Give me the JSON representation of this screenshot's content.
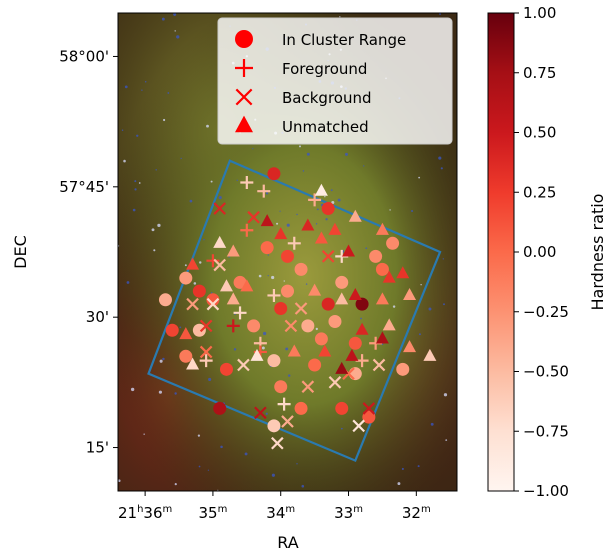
{
  "chart_data": {
    "type": "scatter",
    "xlabel": "RA",
    "ylabel": "DEC",
    "x_ticks": [
      {
        "value": 36,
        "label": "21h36m",
        "main": "21",
        "sup1": "h",
        "mid": "36",
        "sup2": "m"
      },
      {
        "value": 35,
        "label": "35m",
        "main": "35",
        "sup2": "m"
      },
      {
        "value": 34,
        "label": "34m",
        "main": "34",
        "sup2": "m"
      },
      {
        "value": 33,
        "label": "33m",
        "main": "33",
        "sup2": "m"
      },
      {
        "value": 32,
        "label": "32m",
        "main": "32",
        "sup2": "m"
      }
    ],
    "y_ticks": [
      {
        "value": 60,
        "label": "58°00'"
      },
      {
        "value": 45,
        "label": "57°45'"
      },
      {
        "value": 30,
        "label": "30'"
      },
      {
        "value": 15,
        "label": "15'"
      }
    ],
    "xlim": [
      36.4,
      31.4
    ],
    "ylim": [
      10.0,
      65.0
    ],
    "legend": {
      "placement": "top-right",
      "entries": [
        {
          "name": "In Cluster Range",
          "marker": "circle"
        },
        {
          "name": "Foreground",
          "marker": "plus"
        },
        {
          "name": "Background",
          "marker": "x"
        },
        {
          "name": "Unmatched",
          "marker": "triangle"
        }
      ]
    },
    "colorbar": {
      "label": "Hardness ratio",
      "range": [
        -1.0,
        1.0
      ],
      "ticks": [
        "1.00",
        "0.75",
        "0.50",
        "0.25",
        "0.00",
        "−0.25",
        "−0.50",
        "−0.75",
        "−1.00"
      ],
      "tick_values": [
        1.0,
        0.75,
        0.5,
        0.25,
        0.0,
        -0.25,
        -0.5,
        -0.75,
        -1.0
      ],
      "colormap": "Reds"
    },
    "region": [
      [
        35.95,
        23.5
      ],
      [
        34.75,
        48.0
      ],
      [
        31.65,
        37.5
      ],
      [
        32.9,
        13.5
      ]
    ],
    "series": [
      {
        "name": "In Cluster Range",
        "marker": "circle",
        "points": [
          [
            34.1,
            46.5,
            0.4
          ],
          [
            33.3,
            42.5,
            0.3
          ],
          [
            32.6,
            37.0,
            -0.2
          ],
          [
            35.4,
            34.5,
            -0.3
          ],
          [
            35.0,
            32.0,
            0.1
          ],
          [
            34.6,
            34.0,
            -0.1
          ],
          [
            34.2,
            38.0,
            0.0
          ],
          [
            33.7,
            35.5,
            -0.2
          ],
          [
            33.1,
            34.0,
            -0.3
          ],
          [
            32.8,
            31.5,
            0.9
          ],
          [
            35.6,
            28.5,
            0.2
          ],
          [
            35.2,
            28.5,
            -0.5
          ],
          [
            34.4,
            29.0,
            -0.2
          ],
          [
            34.0,
            31.0,
            0.3
          ],
          [
            33.6,
            29.0,
            -0.4
          ],
          [
            33.2,
            29.5,
            -0.3
          ],
          [
            32.9,
            27.0,
            0.1
          ],
          [
            35.4,
            25.5,
            -0.1
          ],
          [
            34.8,
            24.0,
            0.2
          ],
          [
            34.1,
            25.0,
            -0.5
          ],
          [
            33.5,
            24.5,
            0.0
          ],
          [
            32.9,
            23.5,
            -0.4
          ],
          [
            32.2,
            24.0,
            -0.3
          ],
          [
            34.1,
            17.5,
            -0.6
          ],
          [
            33.7,
            19.5,
            0.0
          ],
          [
            33.1,
            19.5,
            0.2
          ],
          [
            32.7,
            18.5,
            0.1
          ],
          [
            34.9,
            19.5,
            0.7
          ],
          [
            34.0,
            22.0,
            -0.1
          ],
          [
            35.2,
            33.0,
            0.3
          ],
          [
            33.9,
            33.0,
            -0.2
          ],
          [
            33.4,
            27.5,
            -0.1
          ],
          [
            32.5,
            35.5,
            0.0
          ],
          [
            35.7,
            32.0,
            -0.4
          ],
          [
            32.35,
            38.5,
            -0.2
          ],
          [
            33.9,
            37.0,
            0.2
          ],
          [
            33.3,
            31.5,
            0.4
          ]
        ]
      },
      {
        "name": "Foreground",
        "marker": "plus",
        "points": [
          [
            34.5,
            45.5,
            -0.6
          ],
          [
            34.25,
            44.5,
            -0.5
          ],
          [
            33.5,
            43.5,
            -0.4
          ],
          [
            33.1,
            37.0,
            -0.7
          ],
          [
            33.8,
            38.5,
            -0.6
          ],
          [
            34.7,
            29.0,
            0.5
          ],
          [
            34.1,
            32.5,
            -0.6
          ],
          [
            34.6,
            30.5,
            -0.7
          ],
          [
            34.3,
            27.0,
            -0.5
          ],
          [
            35.1,
            25.0,
            -0.6
          ],
          [
            34.3,
            26.0,
            0.1
          ],
          [
            32.8,
            25.0,
            -0.4
          ],
          [
            32.6,
            27.0,
            -0.3
          ],
          [
            33.95,
            20.0,
            -0.7
          ],
          [
            35.0,
            36.5,
            0.2
          ],
          [
            34.5,
            40.0,
            0.0
          ]
        ]
      },
      {
        "name": "Background",
        "marker": "x",
        "points": [
          [
            34.9,
            42.5,
            0.4
          ],
          [
            34.4,
            41.5,
            0.3
          ],
          [
            33.3,
            37.0,
            0.2
          ],
          [
            35.3,
            31.5,
            -0.3
          ],
          [
            35.0,
            31.5,
            -0.7
          ],
          [
            34.9,
            36.0,
            -0.5
          ],
          [
            35.1,
            29.0,
            0.3
          ],
          [
            33.85,
            29.0,
            -0.2
          ],
          [
            35.1,
            26.0,
            0.0
          ],
          [
            34.55,
            24.5,
            -0.6
          ],
          [
            33.6,
            22.0,
            -0.3
          ],
          [
            33.2,
            22.5,
            -0.6
          ],
          [
            32.85,
            17.5,
            -0.8
          ],
          [
            33.9,
            18.0,
            -0.4
          ],
          [
            34.3,
            19.0,
            0.6
          ],
          [
            34.05,
            15.5,
            -0.7
          ],
          [
            32.7,
            19.5,
            0.5
          ],
          [
            32.55,
            24.5,
            -0.5
          ],
          [
            33.0,
            23.5,
            0.0
          ],
          [
            33.7,
            31.0,
            -0.3
          ]
        ]
      },
      {
        "name": "Unmatched",
        "marker": "triangle",
        "points": [
          [
            33.4,
            44.5,
            -0.9
          ],
          [
            32.9,
            41.5,
            -0.4
          ],
          [
            33.2,
            40.0,
            0.2
          ],
          [
            33.6,
            40.5,
            0.4
          ],
          [
            34.0,
            39.5,
            0.3
          ],
          [
            34.2,
            41.0,
            0.6
          ],
          [
            32.5,
            40.0,
            -0.1
          ],
          [
            32.2,
            35.0,
            0.3
          ],
          [
            32.9,
            32.5,
            0.5
          ],
          [
            32.5,
            32.0,
            -0.1
          ],
          [
            32.1,
            32.5,
            -0.3
          ],
          [
            33.1,
            32.0,
            -0.5
          ],
          [
            33.5,
            33.0,
            -0.2
          ],
          [
            34.5,
            33.5,
            0.0
          ],
          [
            34.8,
            33.5,
            -0.6
          ],
          [
            35.3,
            36.0,
            0.2
          ],
          [
            34.7,
            37.5,
            -0.3
          ],
          [
            34.9,
            38.5,
            -0.7
          ],
          [
            33.4,
            39.0,
            0.1
          ],
          [
            32.8,
            28.5,
            0.4
          ],
          [
            32.4,
            29.0,
            -0.4
          ],
          [
            32.1,
            26.5,
            -0.2
          ],
          [
            31.8,
            25.5,
            -0.6
          ],
          [
            33.35,
            26.0,
            0.2
          ],
          [
            32.95,
            25.5,
            0.6
          ],
          [
            33.8,
            26.0,
            -0.1
          ],
          [
            34.35,
            25.5,
            -0.8
          ],
          [
            35.3,
            24.5,
            -0.7
          ],
          [
            35.4,
            28.0,
            0.1
          ],
          [
            34.7,
            32.0,
            -0.4
          ],
          [
            33.0,
            37.5,
            0.5
          ],
          [
            32.5,
            27.5,
            0.7
          ],
          [
            32.4,
            34.5,
            0.3
          ],
          [
            33.1,
            24.0,
            0.8
          ]
        ]
      }
    ]
  }
}
